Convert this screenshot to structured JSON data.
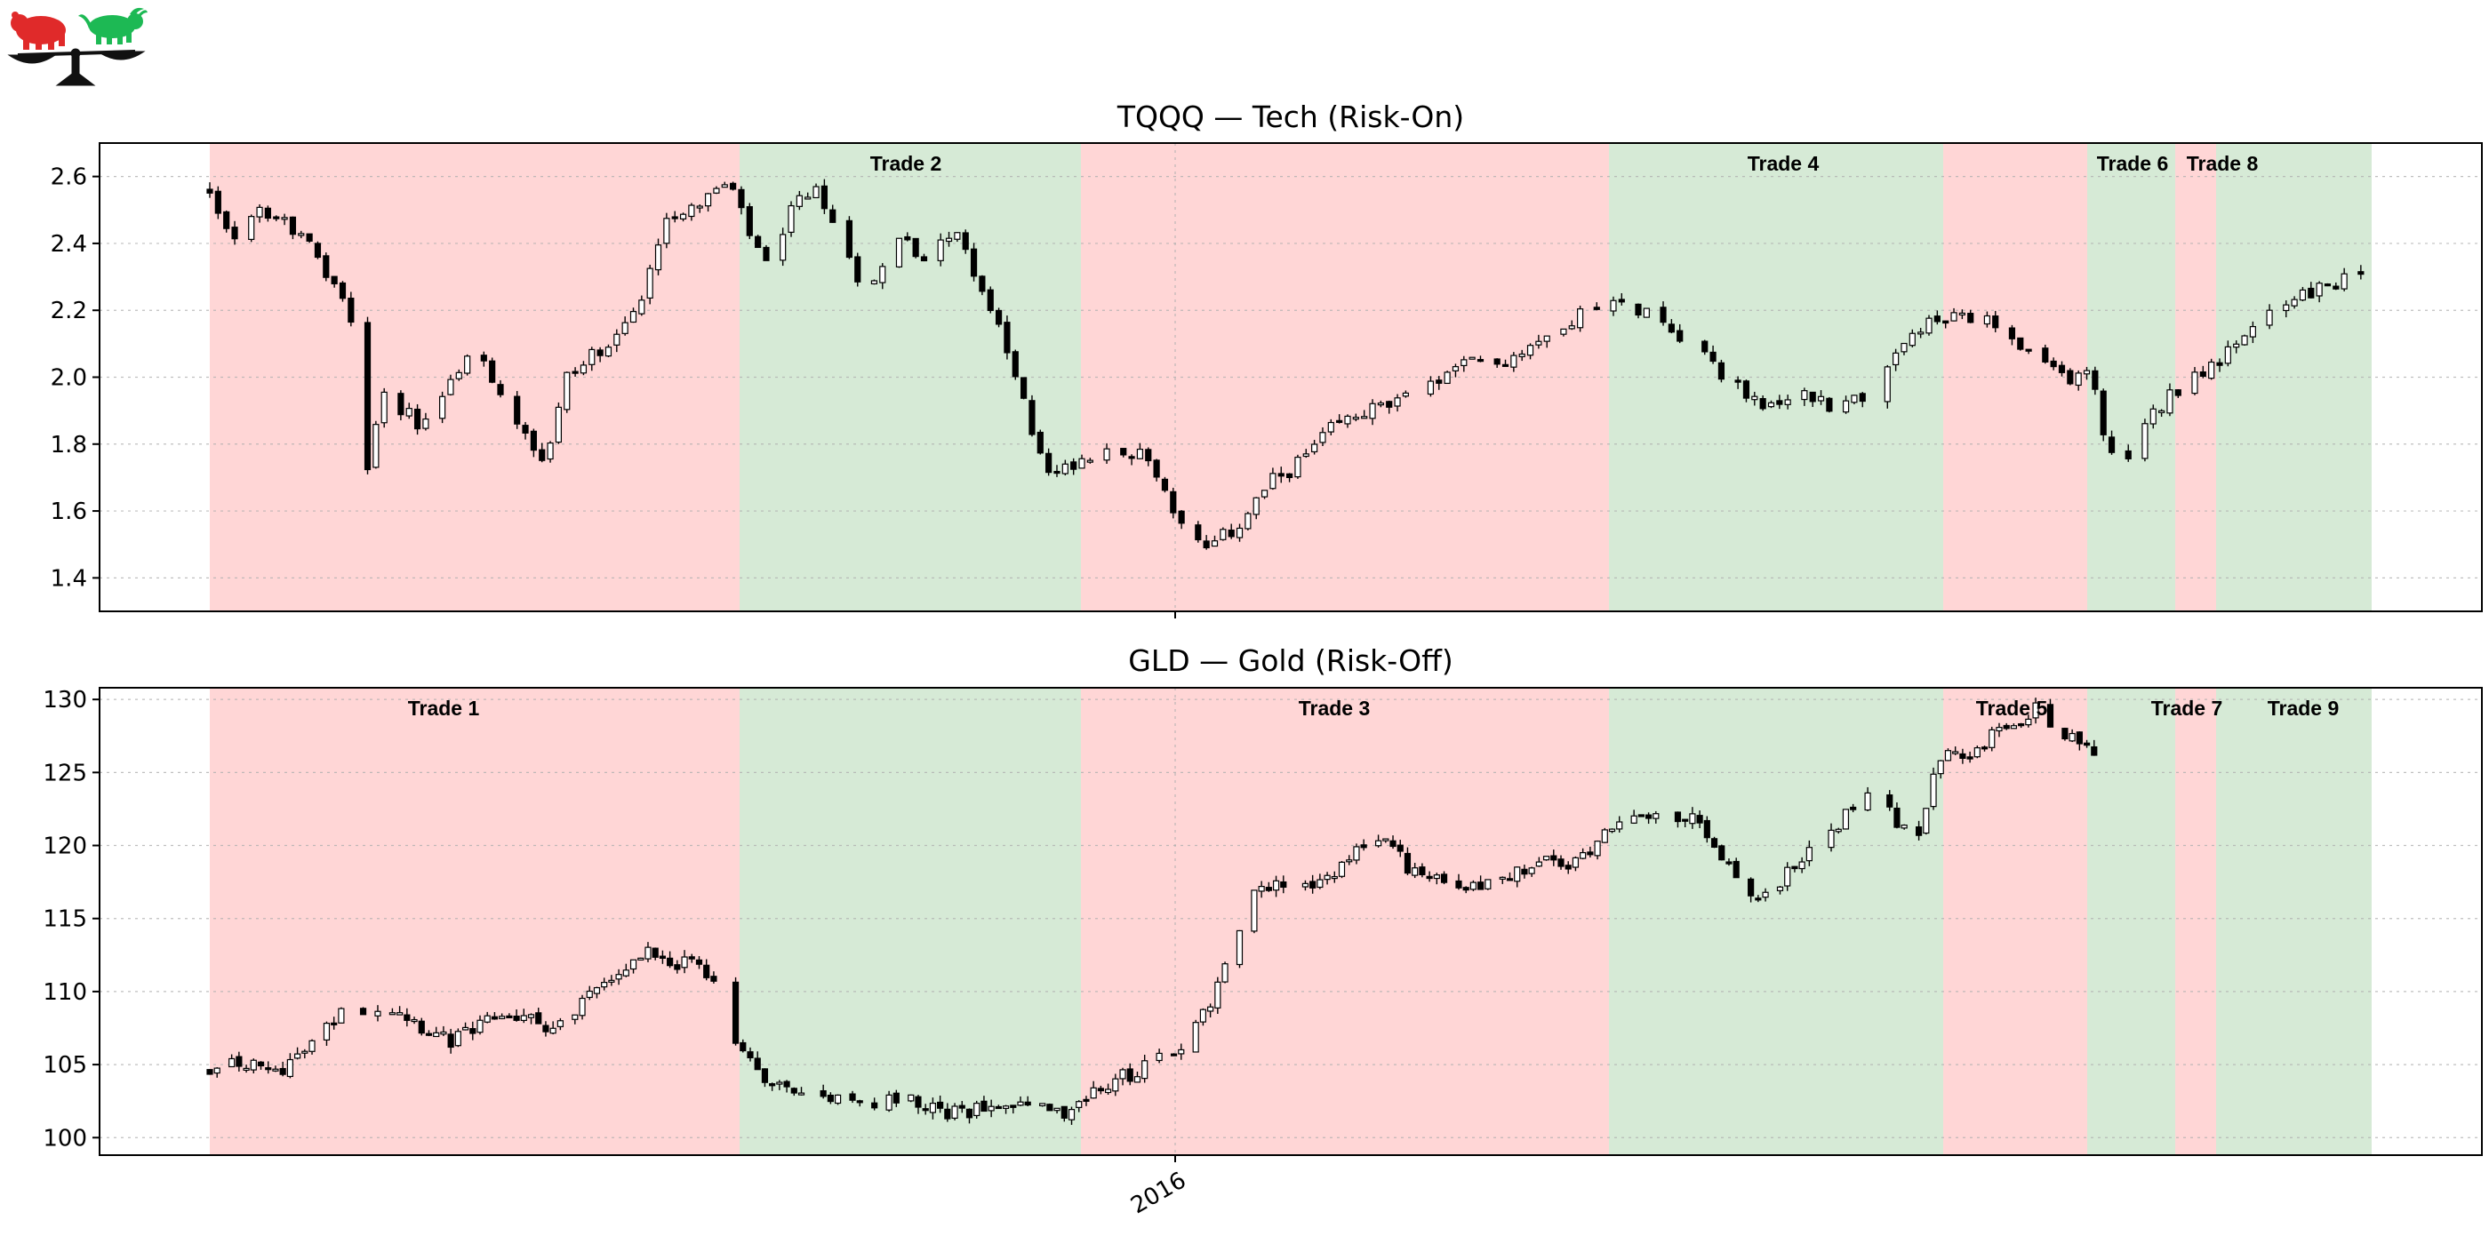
{
  "chart_data": [
    {
      "type": "candlestick",
      "title": "TQQQ — Tech (Risk-On)",
      "ylim": [
        1.3,
        2.7
      ],
      "yticks": [
        1.4,
        1.6,
        1.8,
        2.0,
        2.2,
        2.4,
        2.6
      ],
      "ytick_labels": [
        "1.4",
        "1.6",
        "1.8",
        "2.0",
        "2.2",
        "2.4",
        "2.6"
      ],
      "grid": true,
      "trades": [
        {
          "label": "Trade 2",
          "color": "green"
        },
        {
          "label": "Trade 4",
          "color": "green"
        },
        {
          "label": "Trade 6",
          "color": "green"
        },
        {
          "label": "Trade 8",
          "color": "green"
        }
      ],
      "close_path": [
        [
          0,
          2.56
        ],
        [
          0.02,
          2.42
        ],
        [
          0.05,
          2.5
        ],
        [
          0.08,
          2.44
        ],
        [
          0.1,
          2.35
        ],
        [
          0.13,
          2.2
        ],
        [
          0.145,
          1.7
        ],
        [
          0.16,
          1.95
        ],
        [
          0.18,
          1.9
        ],
        [
          0.2,
          1.85
        ],
        [
          0.22,
          1.97
        ],
        [
          0.24,
          2.08
        ],
        [
          0.26,
          2.0
        ],
        [
          0.28,
          1.9
        ],
        [
          0.31,
          1.75
        ],
        [
          0.33,
          2.0
        ],
        [
          0.35,
          2.05
        ],
        [
          0.38,
          2.15
        ],
        [
          0.4,
          2.22
        ],
        [
          0.42,
          2.48
        ],
        [
          0.45,
          2.52
        ],
        [
          0.48,
          2.58
        ],
        [
          0.5,
          2.42
        ],
        [
          0.52,
          2.3
        ],
        [
          0.54,
          2.52
        ],
        [
          0.56,
          2.55
        ],
        [
          0.58,
          2.45
        ],
        [
          0.6,
          2.3
        ],
        [
          0.62,
          2.3
        ],
        [
          0.64,
          2.42
        ],
        [
          0.66,
          2.35
        ],
        [
          0.68,
          2.45
        ],
        [
          0.7,
          2.38
        ],
        [
          0.72,
          2.22
        ],
        [
          0.74,
          2.05
        ],
        [
          0.76,
          1.85
        ],
        [
          0.78,
          1.7
        ],
        [
          0.8,
          1.75
        ],
        [
          0.84,
          1.8
        ],
        [
          0.87,
          1.75
        ],
        [
          0.9,
          1.55
        ],
        [
          0.92,
          1.48
        ],
        [
          0.95,
          1.55
        ],
        [
          0.98,
          1.68
        ],
        [
          1.01,
          1.75
        ],
        [
          1.04,
          1.85
        ],
        [
          1.07,
          1.9
        ],
        [
          1.1,
          1.92
        ],
        [
          1.12,
          1.95
        ],
        [
          1.14,
          2.0
        ],
        [
          1.17,
          2.05
        ],
        [
          1.2,
          2.05
        ],
        [
          1.24,
          2.15
        ],
        [
          1.28,
          2.2
        ],
        [
          1.31,
          2.22
        ],
        [
          1.34,
          2.18
        ],
        [
          1.37,
          2.1
        ],
        [
          1.4,
          2.0
        ],
        [
          1.42,
          1.95
        ],
        [
          1.45,
          1.9
        ],
        [
          1.47,
          1.95
        ],
        [
          1.5,
          1.92
        ],
        [
          1.53,
          1.95
        ],
        [
          1.56,
          2.05
        ],
        [
          1.58,
          2.15
        ],
        [
          1.61,
          2.17
        ],
        [
          1.64,
          2.17
        ],
        [
          1.67,
          2.1
        ],
        [
          1.7,
          2.02
        ],
        [
          1.72,
          2.0
        ],
        [
          1.74,
          2.02
        ],
        [
          1.75,
          1.85
        ],
        [
          1.77,
          1.72
        ],
        [
          1.8,
          1.9
        ],
        [
          1.83,
          2.0
        ],
        [
          1.86,
          2.05
        ],
        [
          1.88,
          2.1
        ],
        [
          1.91,
          2.22
        ],
        [
          1.94,
          2.25
        ],
        [
          1.97,
          2.28
        ],
        [
          1.99,
          2.32
        ]
      ]
    },
    {
      "type": "candlestick",
      "title": "GLD — Gold (Risk-Off)",
      "ylim": [
        98.8,
        130.8
      ],
      "yticks": [
        100,
        105,
        110,
        115,
        120,
        125,
        130
      ],
      "ytick_labels": [
        "100",
        "105",
        "110",
        "115",
        "120",
        "125",
        "130"
      ],
      "grid": true,
      "trades": [
        {
          "label": "Trade 1",
          "color": "green"
        },
        {
          "label": "Trade 3",
          "color": "green"
        },
        {
          "label": "Trade 5",
          "color": "green"
        },
        {
          "label": "Trade 7",
          "color": "green"
        },
        {
          "label": "Trade 9",
          "color": "green"
        }
      ],
      "close_path": [
        [
          0,
          104.8
        ],
        [
          0.03,
          105
        ],
        [
          0.06,
          104.5
        ],
        [
          0.09,
          106
        ],
        [
          0.11,
          107.5
        ],
        [
          0.13,
          110
        ],
        [
          0.15,
          108
        ],
        [
          0.17,
          109
        ],
        [
          0.2,
          107.5
        ],
        [
          0.22,
          106.5
        ],
        [
          0.25,
          107.5
        ],
        [
          0.27,
          108.5
        ],
        [
          0.3,
          108
        ],
        [
          0.32,
          107.5
        ],
        [
          0.35,
          109.5
        ],
        [
          0.38,
          111.5
        ],
        [
          0.41,
          113
        ],
        [
          0.43,
          112
        ],
        [
          0.45,
          112
        ],
        [
          0.47,
          110
        ],
        [
          0.49,
          106
        ],
        [
          0.51,
          104
        ],
        [
          0.54,
          103.5
        ],
        [
          0.57,
          103
        ],
        [
          0.6,
          102
        ],
        [
          0.63,
          102.5
        ],
        [
          0.66,
          102.5
        ],
        [
          0.68,
          101.5
        ],
        [
          0.7,
          101.7
        ],
        [
          0.72,
          102.5
        ],
        [
          0.75,
          102.5
        ],
        [
          0.78,
          101.5
        ],
        [
          0.81,
          102.5
        ],
        [
          0.84,
          104
        ],
        [
          0.87,
          105
        ],
        [
          0.9,
          106
        ],
        [
          0.93,
          110
        ],
        [
          0.95,
          114
        ],
        [
          0.97,
          117.5
        ],
        [
          0.99,
          117
        ],
        [
          1.02,
          117
        ],
        [
          1.05,
          119
        ],
        [
          1.08,
          120.5
        ],
        [
          1.11,
          118.5
        ],
        [
          1.14,
          118
        ],
        [
          1.17,
          117
        ],
        [
          1.2,
          117.5
        ],
        [
          1.23,
          119
        ],
        [
          1.26,
          118.5
        ],
        [
          1.29,
          121
        ],
        [
          1.31,
          122.5
        ],
        [
          1.33,
          122
        ],
        [
          1.35,
          121.5
        ],
        [
          1.37,
          122
        ],
        [
          1.39,
          120
        ],
        [
          1.41,
          118
        ],
        [
          1.43,
          116
        ],
        [
          1.45,
          117
        ],
        [
          1.47,
          119
        ],
        [
          1.5,
          121
        ],
        [
          1.52,
          122.5
        ],
        [
          1.54,
          123.5
        ],
        [
          1.56,
          121.5
        ],
        [
          1.58,
          120
        ],
        [
          1.6,
          126
        ],
        [
          1.63,
          126.5
        ],
        [
          1.66,
          128
        ],
        [
          1.69,
          129.5
        ],
        [
          1.71,
          128
        ],
        [
          1.73,
          127
        ],
        [
          1.75,
          126
        ]
      ]
    }
  ],
  "x_axis": {
    "tick_label": "2016"
  },
  "zones": [
    {
      "color": "red"
    },
    {
      "color": "green"
    },
    {
      "color": "red"
    },
    {
      "color": "green"
    },
    {
      "color": "red"
    },
    {
      "color": "green"
    },
    {
      "color": "red"
    },
    {
      "color": "green"
    },
    {
      "color": "red"
    }
  ],
  "colors": {
    "red_zone": "#ffd6d6",
    "green_zone": "#d6ead6",
    "bear": "#e02a2a",
    "bull": "#1db954",
    "candle": "#000000"
  },
  "logo": {
    "icon": "bear-bull-scale-icon"
  }
}
